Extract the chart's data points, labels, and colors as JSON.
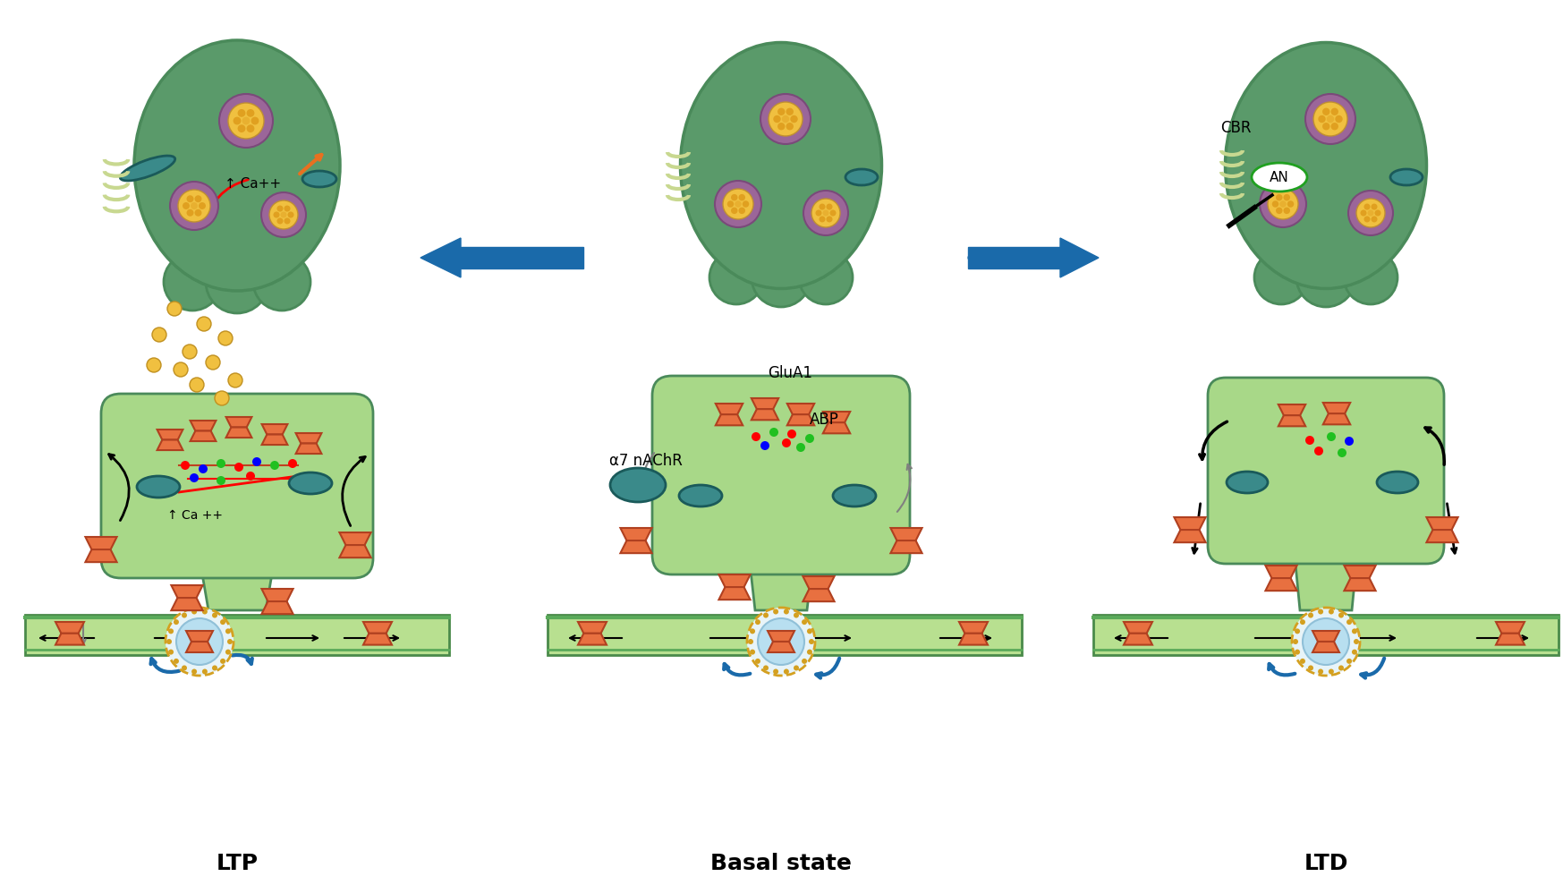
{
  "background_color": "#ffffff",
  "title_ltp": "LTP",
  "title_basal": "Basal state",
  "title_ltd": "LTD",
  "title_fontsize": 18,
  "title_fontweight": "bold",
  "cell_green_dark": "#5a9a6a",
  "cell_green_light": "#c8e6b0",
  "cell_green_medium": "#8bc87a",
  "cell_outline": "#4a8a5a",
  "organelle_purple": "#9b6699",
  "organelle_yellow": "#f0c040",
  "orange_color": "#e87040",
  "blue_arrow": "#1a6aaa",
  "teal_receptor": "#3a8a8a",
  "spine_green": "#a8d888",
  "label_glua1": "GluA1",
  "label_abp": "ABP",
  "label_alpha7": "α7 nAChR",
  "label_ca_ltp": "↑ Ca++",
  "label_ca_spine": "↑ Ca ++",
  "label_cbr": "CBR",
  "label_an": "AN"
}
